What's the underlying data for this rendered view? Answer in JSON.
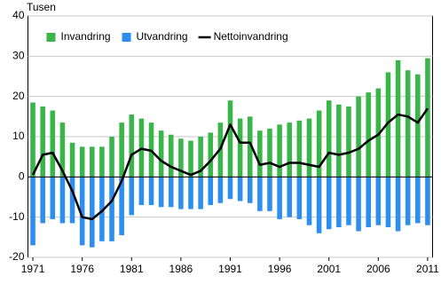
{
  "chart_data": {
    "type": "bar",
    "y_label": "Tusen",
    "x": [
      1971,
      1972,
      1973,
      1974,
      1975,
      1976,
      1977,
      1978,
      1979,
      1980,
      1981,
      1982,
      1983,
      1984,
      1985,
      1986,
      1987,
      1988,
      1989,
      1990,
      1991,
      1992,
      1993,
      1994,
      1995,
      1996,
      1997,
      1998,
      1999,
      2000,
      2001,
      2002,
      2003,
      2004,
      2005,
      2006,
      2007,
      2008,
      2009,
      2010,
      2011
    ],
    "xlim": [
      1970.5,
      2011.5
    ],
    "xticks": [
      1971,
      1976,
      1981,
      1986,
      1991,
      1996,
      2001,
      2006,
      2011
    ],
    "ylim": [
      -20,
      40
    ],
    "yticks": [
      -20,
      -10,
      0,
      10,
      20,
      30,
      40
    ],
    "grid": true,
    "legend": "top-left",
    "series": [
      {
        "name": "Invandring",
        "type": "bar",
        "color": "#39b54a",
        "values": [
          18.5,
          17.5,
          16.5,
          13.5,
          8.5,
          7.5,
          7.5,
          7.5,
          10,
          13.5,
          15.5,
          14.5,
          13.5,
          11.5,
          10.5,
          9.5,
          9,
          10,
          11,
          13.5,
          19,
          14.5,
          15,
          11.5,
          12,
          13,
          13.5,
          14,
          14.5,
          16.5,
          19,
          18,
          17.5,
          20,
          21,
          22,
          26,
          29,
          26.5,
          25.5,
          29.5
        ]
      },
      {
        "name": "Utvandring",
        "type": "bar",
        "color": "#2c8ff0",
        "values": [
          -17,
          -11.5,
          -10.5,
          -11.5,
          -11.5,
          -17,
          -17.5,
          -16,
          -16,
          -14.5,
          -9.5,
          -7,
          -7,
          -7.5,
          -7.5,
          -8,
          -8,
          -8,
          -7,
          -6.5,
          -5.5,
          -6,
          -6.5,
          -8.5,
          -8.5,
          -10.5,
          -10,
          -10.5,
          -12,
          -14,
          -13,
          -12.5,
          -12,
          -13.5,
          -12.5,
          -12,
          -12.5,
          -13.5,
          -12,
          -11.5,
          -12
        ]
      },
      {
        "name": "Nettoinvandring",
        "type": "line",
        "color": "#000000",
        "values": [
          0.5,
          5.5,
          6,
          1.5,
          -3.5,
          -10,
          -10.5,
          -8.5,
          -6,
          -1,
          5.5,
          7,
          6.5,
          4,
          2.5,
          1.5,
          0.5,
          1.5,
          4,
          7,
          13,
          8.5,
          8.5,
          3,
          3.5,
          2.5,
          3.5,
          3.5,
          3,
          2.5,
          6,
          5.5,
          6,
          7,
          9,
          10.5,
          13.5,
          15.5,
          15,
          13.5,
          17
        ]
      }
    ]
  }
}
